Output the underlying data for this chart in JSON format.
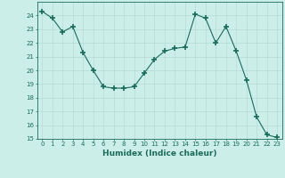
{
  "x": [
    0,
    1,
    2,
    3,
    4,
    5,
    6,
    7,
    8,
    9,
    10,
    11,
    12,
    13,
    14,
    15,
    16,
    17,
    18,
    19,
    20,
    21,
    22,
    23
  ],
  "y": [
    24.3,
    23.8,
    22.8,
    23.2,
    21.3,
    20.0,
    18.8,
    18.7,
    18.7,
    18.8,
    19.8,
    20.8,
    21.4,
    21.6,
    21.7,
    24.1,
    23.8,
    22.0,
    23.2,
    21.4,
    19.3,
    16.6,
    15.3,
    15.1
  ],
  "xlabel": "Humidex (Indice chaleur)",
  "ylim_min": 15,
  "ylim_max": 25,
  "xlim_min": -0.5,
  "xlim_max": 23.5,
  "yticks": [
    15,
    16,
    17,
    18,
    19,
    20,
    21,
    22,
    23,
    24
  ],
  "xticks": [
    0,
    1,
    2,
    3,
    4,
    5,
    6,
    7,
    8,
    9,
    10,
    11,
    12,
    13,
    14,
    15,
    16,
    17,
    18,
    19,
    20,
    21,
    22,
    23
  ],
  "line_color": "#1a6b5a",
  "marker": "+",
  "marker_size": 4,
  "bg_color": "#cceee8",
  "grid_color": "#b5ddd5",
  "axis_color": "#1a6b5a",
  "label_color": "#1a6b5a",
  "tick_fontsize": 5.0,
  "xlabel_fontsize": 6.5
}
